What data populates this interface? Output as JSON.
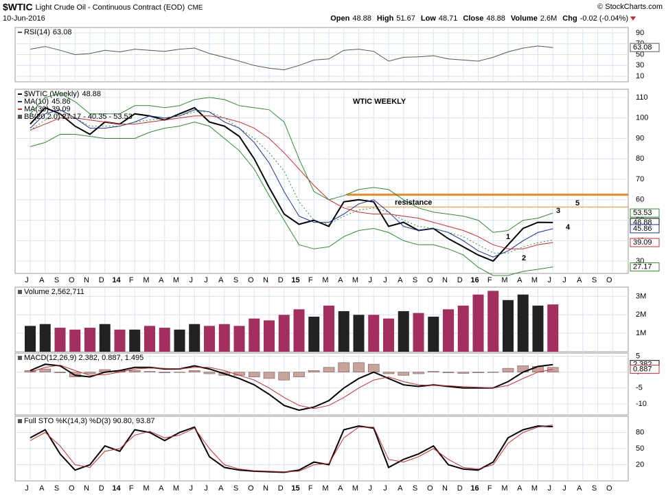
{
  "header": {
    "symbol": "$WTIC",
    "name": "Light Crude Oil - Continuous Contract (EOD)",
    "exchange": "CME",
    "date": "10-Jun-2016",
    "credit": "© StockCharts.com",
    "quote": [
      {
        "label": "Open",
        "value": "48.88"
      },
      {
        "label": "High",
        "value": "51.67"
      },
      {
        "label": "Low",
        "value": "48.71"
      },
      {
        "label": "Close",
        "value": "48.88"
      },
      {
        "label": "Volume",
        "value": "2.6M"
      },
      {
        "label": "Chg",
        "value": "-0.02 (-0.04%)"
      }
    ]
  },
  "chart_data": [
    {
      "type": "line",
      "ylim": [
        0,
        100
      ],
      "yticks": [
        10,
        30,
        50,
        70,
        90
      ],
      "grid": true,
      "series": [
        {
          "name": "RSI(14)",
          "color": "#555555",
          "tag": true,
          "values": [
            60,
            65,
            58,
            50,
            52,
            58,
            55,
            60,
            58,
            56,
            60,
            62,
            52,
            45,
            38,
            30,
            25,
            22,
            30,
            40,
            42,
            58,
            60,
            56,
            38,
            45,
            46,
            48,
            42,
            40,
            38,
            45,
            55,
            62,
            66,
            63.08,
            null,
            null,
            null,
            null
          ]
        }
      ]
    },
    {
      "type": "line",
      "ylim": [
        24,
        114
      ],
      "yticks": [
        30,
        40,
        50,
        60,
        70,
        80,
        90,
        100,
        110
      ],
      "grid": true,
      "categories": [
        "J",
        "A",
        "S",
        "O",
        "N",
        "D",
        "14",
        "F",
        "M",
        "A",
        "M",
        "J",
        "J",
        "A",
        "S",
        "O",
        "N",
        "D",
        "15",
        "F",
        "M",
        "A",
        "M",
        "J",
        "J",
        "A",
        "S",
        "O",
        "N",
        "D",
        "16",
        "F",
        "M",
        "A",
        "M",
        "J",
        "J",
        "A",
        "S",
        "O"
      ],
      "series": [
        {
          "name": "$WTIC (Weekly)",
          "color": "#000000",
          "width": 2,
          "tag": true,
          "values": [
            97,
            105,
            102,
            96,
            92,
            98,
            97,
            102,
            101,
            99,
            102,
            105,
            98,
            96,
            91,
            80,
            66,
            53,
            48,
            50,
            47,
            59,
            60,
            59,
            47,
            49,
            45,
            46,
            41,
            37,
            33,
            30,
            38,
            46,
            49,
            48.88,
            null,
            null,
            null,
            null
          ]
        },
        {
          "name": "MA(10)",
          "color": "#1c2e9c",
          "width": 1,
          "tag": true,
          "values": [
            95,
            102,
            104,
            100,
            95,
            95,
            96,
            98,
            101,
            100,
            101,
            104,
            103,
            98,
            95,
            88,
            78,
            64,
            52,
            49,
            49,
            53,
            58,
            60,
            54,
            47,
            45,
            46,
            44,
            40,
            35,
            32,
            35,
            40,
            44,
            45.86,
            null,
            null,
            null,
            null
          ]
        },
        {
          "name": "MA(30)",
          "color": "#cc2a2a",
          "width": 1,
          "tag": true,
          "values": [
            94,
            97,
            100,
            100,
            99,
            98,
            97,
            97,
            98,
            99,
            100,
            101,
            101,
            100,
            98,
            95,
            90,
            83,
            75,
            67,
            60,
            56,
            54,
            53,
            53,
            52,
            51,
            49,
            47,
            45,
            42,
            38,
            36,
            36,
            38,
            39.09,
            null,
            null,
            null,
            null
          ]
        },
        {
          "color": "#2f8a2f",
          "width": 1,
          "tag": true,
          "values": [
            102,
            110,
            112,
            108,
            102,
            102,
            102,
            106,
            106,
            105,
            106,
            109,
            110,
            109,
            106,
            105,
            104,
            98,
            80,
            64,
            60,
            62,
            65,
            66,
            65,
            60,
            56,
            54,
            53,
            52,
            50,
            44,
            45,
            50,
            51,
            53.53,
            null,
            null,
            null,
            null
          ]
        },
        {
          "color": "#2f8a2f",
          "width": 1,
          "dash": true,
          "values": [
            94,
            99,
            102,
            100,
            96,
            96,
            96,
            98,
            99,
            100,
            101,
            103,
            103,
            100,
            95,
            90,
            83,
            74,
            59,
            50,
            48,
            52,
            55,
            56,
            54,
            50,
            47,
            46,
            44,
            42,
            38,
            34,
            34,
            37,
            39,
            40.35,
            null,
            null,
            null,
            null
          ]
        },
        {
          "color": "#2f8a2f",
          "width": 1,
          "tag": true,
          "values": [
            86,
            88,
            92,
            92,
            91,
            90,
            90,
            90,
            93,
            95,
            96,
            98,
            96,
            90,
            84,
            75,
            62,
            50,
            38,
            36,
            37,
            42,
            45,
            46,
            44,
            40,
            38,
            38,
            36,
            33,
            27,
            23,
            23,
            25,
            26,
            27.17,
            null,
            null,
            null,
            null
          ]
        }
      ],
      "legend": "BB(20,2.0) 27.17 - 40.35 - 53.53",
      "hlines": [
        {
          "value": 62.5,
          "color": "#f0892a",
          "width": 3
        },
        {
          "value": 56.5,
          "color": "#f0892a",
          "width": 1
        }
      ],
      "annotations": [
        "WTIC WEEKLY",
        "resistance",
        "1",
        "2",
        "3",
        "4",
        "5"
      ]
    },
    {
      "type": "bar",
      "ylim": [
        0,
        3500000
      ],
      "yticks": [
        {
          "value": 1000000,
          "label": "1M"
        },
        {
          "value": 2000000,
          "label": "2M"
        },
        {
          "value": 3000000,
          "label": "3M"
        }
      ],
      "grid": true,
      "legend": "Volume 2,562,711",
      "series": [
        {
          "values": [
            1400000,
            1500000,
            1300000,
            1200000,
            1300000,
            1500000,
            1200000,
            1200000,
            1400000,
            1300000,
            1200000,
            1500000,
            1400000,
            1500000,
            1400000,
            1800000,
            1700000,
            2000000,
            2300000,
            1900000,
            2500000,
            2200000,
            2000000,
            2000000,
            1800000,
            2200000,
            2100000,
            1900000,
            2300000,
            2500000,
            3100000,
            3300000,
            2800000,
            3100000,
            2500000,
            2562711,
            null,
            null,
            null,
            null
          ]
        }
      ]
    },
    {
      "type": "line",
      "ylim": [
        -13.5,
        6
      ],
      "yticks": [
        -10,
        -5,
        0,
        5
      ],
      "grid": true,
      "legend": "MACD(12,26,9) 2.382, 0.887, 1.495",
      "series": [
        {
          "type": "bar",
          "color": "#c9a29c",
          "values": [
            0.5,
            1,
            -0.2,
            -1.5,
            -0.5,
            0.8,
            0.5,
            0.5,
            0.2,
            -0.2,
            0,
            0.5,
            -0.5,
            -1,
            -1,
            -1.5,
            -2,
            -2.5,
            -1.5,
            0.5,
            1.5,
            3,
            3,
            2.5,
            -0.5,
            -1,
            -0.5,
            0.2,
            -0.2,
            -0.4,
            -0.2,
            0,
            1.2,
            2,
            1.8,
            1.495,
            null,
            null,
            null,
            null
          ]
        },
        {
          "color": "#000000",
          "width": 2,
          "tag": true,
          "values": [
            0.5,
            2.5,
            2,
            -1,
            -1.5,
            0,
            0.5,
            1.5,
            1.5,
            1,
            1,
            2,
            1,
            -0.5,
            -2,
            -4,
            -7,
            -10.5,
            -12,
            -11,
            -9,
            -5,
            -2,
            0,
            -2,
            -4,
            -4.5,
            -4,
            -4.5,
            -5,
            -5,
            -5,
            -3,
            0,
            1.8,
            2.382,
            null,
            null,
            null,
            null
          ]
        },
        {
          "color": "#cc2a2a",
          "width": 1,
          "tag": true,
          "values": [
            0,
            1.5,
            2.2,
            0.5,
            -1,
            -0.8,
            0,
            1,
            1.3,
            1.2,
            1,
            1.5,
            1.5,
            0.5,
            -1,
            -2.5,
            -5,
            -8,
            -10.5,
            -11.5,
            -10.5,
            -8,
            -5,
            -2.5,
            -1.5,
            -3,
            -4,
            -4.2,
            -4.3,
            -4.6,
            -4.8,
            -5,
            -4.2,
            -2,
            0,
            0.887,
            null,
            null,
            null,
            null
          ]
        }
      ]
    },
    {
      "type": "line",
      "ylim": [
        -10,
        110
      ],
      "yticks": [
        20,
        50,
        80
      ],
      "grid": true,
      "legend": "Full STO %K(14,3) %D(3) 90.80, 93.87",
      "series": [
        {
          "color": "#000000",
          "width": 2,
          "values": [
            70,
            85,
            40,
            10,
            20,
            55,
            45,
            85,
            80,
            65,
            80,
            90,
            35,
            15,
            10,
            8,
            7,
            6,
            10,
            25,
            20,
            85,
            92,
            88,
            15,
            30,
            40,
            55,
            20,
            12,
            10,
            25,
            70,
            85,
            92,
            90.8,
            null,
            null,
            null,
            null
          ]
        },
        {
          "color": "#cc2a2a",
          "width": 1,
          "values": [
            65,
            80,
            55,
            20,
            15,
            45,
            50,
            75,
            82,
            70,
            75,
            88,
            50,
            20,
            12,
            9,
            8,
            7,
            8,
            20,
            22,
            70,
            90,
            90,
            30,
            25,
            35,
            50,
            30,
            15,
            12,
            20,
            60,
            80,
            90,
            93.87,
            null,
            null,
            null,
            null
          ]
        }
      ]
    }
  ]
}
